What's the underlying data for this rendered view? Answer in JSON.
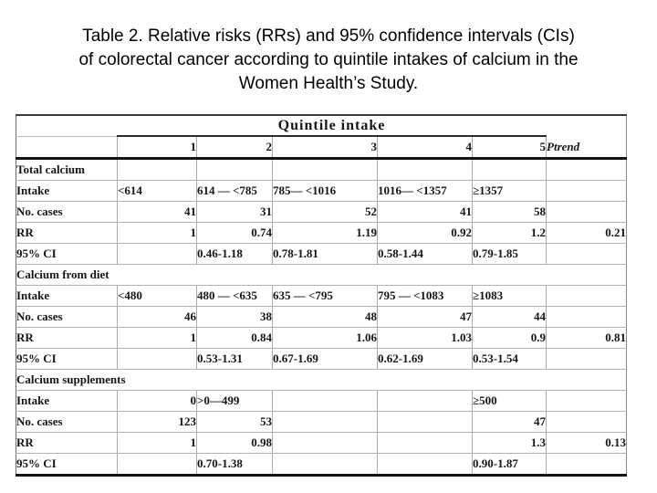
{
  "title_lines": [
    "Table 2. Relative risks (RRs) and 95% confidence intervals (CIs)",
    "of colorectal cancer according to quintile intakes of calcium in the",
    "Women Health’s Study."
  ],
  "table": {
    "quintile_header": "Quintile intake",
    "column_numbers": [
      "1",
      "2",
      "3",
      "4",
      "5"
    ],
    "ptrend_header": "Ptrend",
    "sections": [
      {
        "name": "Total calcium",
        "full_width_header": false,
        "rows": [
          {
            "label": "Intake",
            "align": "left",
            "cells": [
              "<614",
              "614 — <785",
              "785— <1016",
              "1016— <1357",
              "≥1357"
            ],
            "ptrend": ""
          },
          {
            "label": "No. cases",
            "align": "right",
            "cells": [
              "41",
              "31",
              "52",
              "41",
              "58"
            ],
            "ptrend": ""
          },
          {
            "label": "RR",
            "align": "right",
            "cells": [
              "1",
              "0.74",
              "1.19",
              "0.92",
              "1.2"
            ],
            "ptrend": "0.21"
          },
          {
            "label": "95% CI",
            "align": "left",
            "cells": [
              "",
              "0.46-1.18",
              "0.78-1.81",
              "0.58-1.44",
              "0.79-1.85"
            ],
            "ptrend": ""
          }
        ]
      },
      {
        "name": "Calcium from diet",
        "full_width_header": true,
        "rows": [
          {
            "label": "Intake",
            "align": "left",
            "cells": [
              "<480",
              "480 — <635",
              "635 — <795",
              "795 — <1083",
              "≥1083"
            ],
            "ptrend": ""
          },
          {
            "label": "No. cases",
            "align": "right",
            "cells": [
              "46",
              "38",
              "48",
              "47",
              "44"
            ],
            "ptrend": ""
          },
          {
            "label": "RR",
            "align": "right",
            "cells": [
              "1",
              "0.84",
              "1.06",
              "1.03",
              "0.9"
            ],
            "ptrend": "0.81"
          },
          {
            "label": "95% CI",
            "align": "left",
            "cells": [
              "",
              "0.53-1.31",
              "0.67-1.69",
              "0.62-1.69",
              "0.53-1.54"
            ],
            "ptrend": ""
          }
        ]
      },
      {
        "name": "Calcium supplements",
        "full_width_header": true,
        "rows": [
          {
            "label": "Intake",
            "align": "left",
            "cell_align": [
              "right",
              "left",
              "left",
              "left",
              "left"
            ],
            "cells": [
              "0",
              ">0—499",
              "",
              "",
              "≥500"
            ],
            "ptrend": ""
          },
          {
            "label": "No. cases",
            "align": "right",
            "cells": [
              "123",
              "53",
              "",
              "",
              "47"
            ],
            "ptrend": ""
          },
          {
            "label": "RR",
            "align": "right",
            "label_indent": false,
            "cells": [
              "1",
              "0.98",
              "",
              "",
              "1.3"
            ],
            "ptrend": "0.13"
          },
          {
            "label": "95% CI",
            "align": "left",
            "cells": [
              "",
              "0.70-1.38",
              "",
              "",
              "0.90-1.87"
            ],
            "ptrend": ""
          }
        ]
      }
    ]
  }
}
